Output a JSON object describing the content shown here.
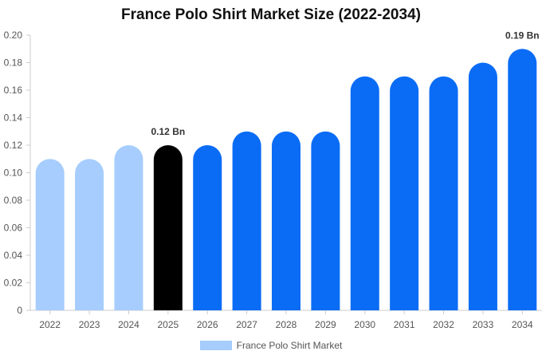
{
  "chart_data": {
    "type": "bar",
    "title": "France Polo Shirt Market Size (2022-2034)",
    "categories": [
      "2022",
      "2023",
      "2024",
      "2025",
      "2026",
      "2027",
      "2028",
      "2029",
      "2030",
      "2031",
      "2032",
      "2033",
      "2034"
    ],
    "series": [
      {
        "name": "France Polo Shirt Market",
        "values": [
          0.11,
          0.11,
          0.12,
          0.12,
          0.12,
          0.13,
          0.13,
          0.13,
          0.17,
          0.17,
          0.17,
          0.18,
          0.19
        ]
      }
    ],
    "bar_colors": [
      "#a6cdfd",
      "#a6cdfd",
      "#a6cdfd",
      "#000000",
      "#0a6cf5",
      "#0a6cf5",
      "#0a6cf5",
      "#0a6cf5",
      "#0a6cf5",
      "#0a6cf5",
      "#0a6cf5",
      "#0a6cf5",
      "#0a6cf5"
    ],
    "data_labels": [
      {
        "category": "2025",
        "text": "0.12 Bn"
      },
      {
        "category": "2034",
        "text": "0.19 Bn"
      }
    ],
    "y_ticks": [
      "0",
      "0.02",
      "0.04",
      "0.06",
      "0.08",
      "0.10",
      "0.12",
      "0.14",
      "0.16",
      "0.18",
      "0.20"
    ],
    "ylim": [
      0,
      0.2
    ],
    "xlabel": "",
    "ylabel": "",
    "grid": false,
    "legend_position": "bottom",
    "legend_color": "#a6cdfd",
    "colors": {
      "history": "#a6cdfd",
      "current": "#000000",
      "forecast": "#0a6cf5",
      "axis": "#cccccc",
      "text": "#555555"
    }
  }
}
